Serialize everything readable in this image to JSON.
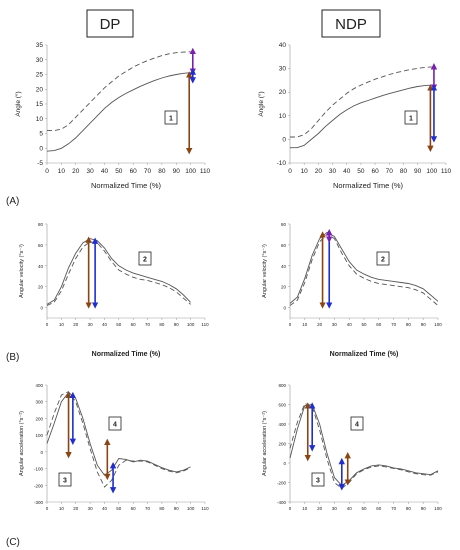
{
  "headers": {
    "left": "DP",
    "right": "NDP"
  },
  "row_labels": [
    "(A)",
    "(B)",
    "(C)"
  ],
  "colors": {
    "brown": "#8B4513",
    "blue": "#1f2ecf",
    "purple": "#7a1fb0",
    "line": "#555555"
  },
  "chart_data": [
    {
      "type": "line",
      "id": "A-DP",
      "ylabel": "Angle (°)",
      "xlabel": "Normalized Time (%)",
      "xlim": [
        0,
        110
      ],
      "ylim": [
        -5,
        35
      ],
      "xticks": [
        "0",
        "10",
        "20",
        "30",
        "40",
        "50",
        "60",
        "70",
        "80",
        "90",
        "100",
        "110"
      ],
      "yticks": [
        "-5",
        "0",
        "5",
        "10",
        "15",
        "20",
        "25",
        "30",
        "35"
      ],
      "annotation": "1",
      "series": [
        {
          "style": "solid",
          "x": [
            0,
            5,
            10,
            15,
            20,
            25,
            30,
            35,
            40,
            45,
            50,
            55,
            60,
            65,
            70,
            75,
            80,
            85,
            90,
            95,
            100
          ],
          "y": [
            -1,
            -0.8,
            0,
            1.5,
            3.5,
            6,
            8.5,
            11,
            13.5,
            15.5,
            17.2,
            18.6,
            19.8,
            21,
            22,
            23,
            23.8,
            24.5,
            25,
            25.4,
            25.6
          ]
        },
        {
          "style": "dashed",
          "x": [
            0,
            5,
            10,
            15,
            20,
            25,
            30,
            35,
            40,
            45,
            50,
            55,
            60,
            65,
            70,
            75,
            80,
            85,
            90,
            95,
            100
          ],
          "y": [
            6,
            6,
            6.5,
            8,
            10.5,
            13,
            15.5,
            18,
            20.5,
            22.5,
            24.5,
            26,
            27.5,
            28.7,
            29.7,
            30.6,
            31.4,
            32,
            32.4,
            32.6,
            32.7
          ]
        }
      ],
      "arrows": [
        {
          "color": "brown",
          "x": 99,
          "y1": -1,
          "y2": 25
        },
        {
          "color": "purple",
          "x": 101.5,
          "y1": 26,
          "y2": 33
        },
        {
          "color": "blue",
          "x": 101.5,
          "y1": 26,
          "y2": 23
        }
      ]
    },
    {
      "type": "line",
      "id": "A-NDP",
      "ylabel": "Angle (°)",
      "xlabel": "Normalized Time (%)",
      "xlim": [
        0,
        110
      ],
      "ylim": [
        -10,
        40
      ],
      "xticks": [
        "0",
        "10",
        "20",
        "30",
        "40",
        "50",
        "60",
        "70",
        "80",
        "90",
        "100",
        "110"
      ],
      "yticks": [
        "-10",
        "0",
        "10",
        "20",
        "30",
        "40"
      ],
      "annotation": "1",
      "series": [
        {
          "style": "solid",
          "x": [
            0,
            5,
            10,
            15,
            20,
            25,
            30,
            35,
            40,
            45,
            50,
            55,
            60,
            65,
            70,
            75,
            80,
            85,
            90,
            95,
            100
          ],
          "y": [
            -3.5,
            -3.5,
            -2.5,
            0,
            2.5,
            5.5,
            8,
            10.5,
            12.5,
            14.2,
            15.5,
            16.5,
            17.5,
            18.5,
            19.4,
            20.2,
            21,
            21.8,
            22.4,
            22.8,
            23
          ]
        },
        {
          "style": "dashed",
          "x": [
            0,
            5,
            10,
            15,
            20,
            25,
            30,
            35,
            40,
            45,
            50,
            55,
            60,
            65,
            70,
            75,
            80,
            85,
            90,
            95,
            100
          ],
          "y": [
            1,
            1,
            2,
            4.5,
            8,
            11.5,
            14.5,
            17,
            19.5,
            21.5,
            23,
            24.3,
            25.5,
            26.5,
            27.5,
            28.3,
            29,
            29.6,
            30.1,
            30.5,
            30.7
          ]
        }
      ],
      "arrows": [
        {
          "color": "brown",
          "x": 99,
          "y1": -4,
          "y2": 22
        },
        {
          "color": "purple",
          "x": 101.5,
          "y1": 22,
          "y2": 31
        },
        {
          "color": "blue",
          "x": 101.5,
          "y1": 22,
          "y2": 0
        }
      ]
    },
    {
      "type": "line",
      "id": "B-DP",
      "ylabel": "Angular velocity (°s⁻¹)",
      "xlabel": "Normalized Time (%)",
      "xlim": [
        0,
        110
      ],
      "ylim": [
        -10,
        80
      ],
      "xticks": [
        "0",
        "10",
        "20",
        "30",
        "40",
        "50",
        "60",
        "70",
        "80",
        "90",
        "100",
        "110"
      ],
      "yticks": [
        "0",
        "20",
        "40",
        "60",
        "80"
      ],
      "annotation": "2",
      "series": [
        {
          "style": "solid",
          "x": [
            0,
            5,
            10,
            15,
            20,
            25,
            30,
            35,
            40,
            45,
            50,
            55,
            60,
            65,
            70,
            75,
            80,
            85,
            90,
            95,
            100
          ],
          "y": [
            3,
            7,
            20,
            38,
            52,
            62,
            66,
            64,
            57,
            47,
            40,
            36,
            33,
            31,
            29,
            27,
            25,
            22,
            18,
            12,
            5
          ]
        },
        {
          "style": "dashed",
          "x": [
            0,
            5,
            10,
            15,
            20,
            25,
            30,
            35,
            40,
            45,
            50,
            55,
            60,
            65,
            70,
            75,
            80,
            85,
            90,
            95,
            100
          ],
          "y": [
            2,
            5,
            16,
            32,
            47,
            58,
            63,
            62,
            54,
            44,
            36,
            32,
            29,
            27,
            26,
            24,
            22,
            19,
            15,
            9,
            3
          ]
        }
      ],
      "arrows": [
        {
          "color": "brown",
          "x": 29,
          "y1": 2,
          "y2": 65
        },
        {
          "color": "blue",
          "x": 33.5,
          "y1": 2,
          "y2": 64
        }
      ]
    },
    {
      "type": "line",
      "id": "B-NDP",
      "ylabel": "Angular velocity (°s⁻¹)",
      "xlabel": "Normalized Time (%)",
      "xlim": [
        0,
        100
      ],
      "ylim": [
        -10,
        80
      ],
      "xticks": [
        "0",
        "10",
        "20",
        "30",
        "40",
        "50",
        "60",
        "70",
        "80",
        "90",
        "100"
      ],
      "yticks": [
        "0",
        "20",
        "40",
        "60",
        "80"
      ],
      "annotation": "2",
      "series": [
        {
          "style": "solid",
          "x": [
            0,
            5,
            10,
            15,
            20,
            25,
            30,
            35,
            40,
            45,
            50,
            55,
            60,
            65,
            70,
            75,
            80,
            85,
            90,
            95,
            100
          ],
          "y": [
            4,
            10,
            28,
            50,
            66,
            72,
            68,
            56,
            44,
            36,
            32,
            29,
            27,
            26,
            25,
            24,
            23,
            21,
            18,
            12,
            6
          ]
        },
        {
          "style": "dashed",
          "x": [
            0,
            5,
            10,
            15,
            20,
            25,
            30,
            35,
            40,
            45,
            50,
            55,
            60,
            65,
            70,
            75,
            80,
            85,
            90,
            95,
            100
          ],
          "y": [
            2,
            7,
            24,
            46,
            63,
            70,
            66,
            52,
            40,
            32,
            28,
            25,
            23,
            22,
            21,
            20,
            19,
            17,
            14,
            8,
            2
          ]
        }
      ],
      "arrows": [
        {
          "color": "brown",
          "x": 22,
          "y1": 2,
          "y2": 70
        },
        {
          "color": "blue",
          "x": 26.5,
          "y1": 2,
          "y2": 72
        },
        {
          "color": "purple",
          "x": 26.5,
          "y1": 65,
          "y2": 72
        }
      ]
    },
    {
      "type": "line",
      "id": "C-DP",
      "ylabel": "Angular acceleration (°s⁻²)",
      "xlabel": "",
      "xlim": [
        0,
        110
      ],
      "ylim": [
        -300,
        400
      ],
      "xticks": [
        "0",
        "10",
        "20",
        "30",
        "40",
        "50",
        "60",
        "70",
        "80",
        "90",
        "100",
        "110"
      ],
      "yticks": [
        "-300",
        "-200",
        "-100",
        "0",
        "100",
        "200",
        "300",
        "400"
      ],
      "annotations": [
        "3",
        "4"
      ],
      "series": [
        {
          "style": "solid",
          "x": [
            0,
            5,
            10,
            15,
            20,
            25,
            30,
            35,
            40,
            45,
            50,
            55,
            60,
            65,
            70,
            75,
            80,
            85,
            90,
            95,
            100
          ],
          "y": [
            50,
            170,
            300,
            355,
            320,
            200,
            50,
            -80,
            -140,
            -110,
            -40,
            -45,
            -60,
            -50,
            -55,
            -75,
            -95,
            -110,
            -120,
            -110,
            -90
          ]
        },
        {
          "style": "dashed",
          "x": [
            0,
            5,
            10,
            15,
            20,
            25,
            30,
            35,
            40,
            45,
            50,
            55,
            60,
            65,
            70,
            75,
            80,
            85,
            90,
            95,
            100
          ],
          "y": [
            100,
            230,
            340,
            360,
            300,
            170,
            20,
            -120,
            -210,
            -170,
            -80,
            -50,
            -55,
            -55,
            -60,
            -80,
            -100,
            -115,
            -125,
            -115,
            -95
          ]
        }
      ],
      "arrows": [
        {
          "color": "brown",
          "x": 15,
          "y1": 340,
          "y2": -20
        },
        {
          "color": "blue",
          "x": 18,
          "y1": 340,
          "y2": 60
        },
        {
          "color": "brown",
          "x": 42,
          "y1": 60,
          "y2": -150
        },
        {
          "color": "blue",
          "x": 46,
          "y1": -80,
          "y2": -230
        }
      ]
    },
    {
      "type": "line",
      "id": "C-NDP",
      "ylabel": "Angular acceleration (°s⁻²)",
      "xlabel": "",
      "xlim": [
        0,
        100
      ],
      "ylim": [
        -400,
        800
      ],
      "xticks": [
        "0",
        "10",
        "20",
        "30",
        "40",
        "50",
        "60",
        "70",
        "80",
        "90",
        "100"
      ],
      "yticks": [
        "-400",
        "-200",
        "0",
        "200",
        "400",
        "600",
        "800"
      ],
      "annotations": [
        "4",
        "3"
      ],
      "series": [
        {
          "style": "solid",
          "x": [
            0,
            5,
            10,
            15,
            20,
            25,
            30,
            35,
            40,
            45,
            50,
            55,
            60,
            65,
            70,
            75,
            80,
            85,
            90,
            95,
            100
          ],
          "y": [
            50,
            350,
            590,
            600,
            400,
            100,
            -150,
            -230,
            -180,
            -100,
            -60,
            -30,
            -20,
            -30,
            -50,
            -60,
            -80,
            -100,
            -110,
            -120,
            -80
          ]
        },
        {
          "style": "dashed",
          "x": [
            0,
            5,
            10,
            15,
            20,
            25,
            30,
            35,
            40,
            45,
            50,
            55,
            60,
            65,
            70,
            75,
            80,
            85,
            90,
            95,
            100
          ],
          "y": [
            150,
            420,
            610,
            580,
            340,
            40,
            -200,
            -260,
            -200,
            -110,
            -70,
            -40,
            -30,
            -40,
            -55,
            -70,
            -90,
            -110,
            -120,
            -125,
            -90
          ]
        }
      ],
      "arrows": [
        {
          "color": "brown",
          "x": 12,
          "y1": 590,
          "y2": 50
        },
        {
          "color": "blue",
          "x": 15,
          "y1": 590,
          "y2": 150
        },
        {
          "color": "blue",
          "x": 35,
          "y1": 20,
          "y2": -250
        },
        {
          "color": "brown",
          "x": 39,
          "y1": 80,
          "y2": -200
        }
      ]
    }
  ]
}
